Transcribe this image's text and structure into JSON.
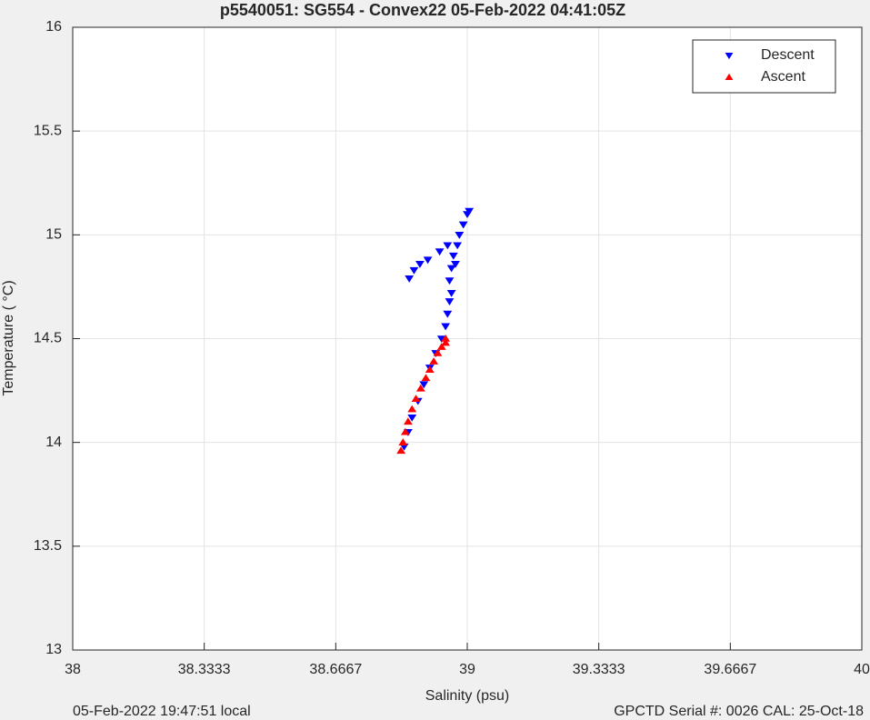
{
  "chart_data": {
    "type": "scatter",
    "title": "p5540051: SG554 - Convex22 05-Feb-2022 04:41:05Z",
    "x_label": "Salinity (psu)",
    "y_label": "Temperature ( °C)",
    "footer_left": "05-Feb-2022 19:47:51 local",
    "footer_right": "GPCTD Serial #: 0026 CAL: 25-Oct-18",
    "xlim": [
      38,
      40
    ],
    "xticks": [
      38,
      38.3333,
      38.6667,
      39,
      39.3333,
      39.6667,
      40
    ],
    "ylim": [
      13,
      16
    ],
    "yticks": [
      13,
      13.5,
      14,
      14.5,
      15,
      15.5,
      16
    ],
    "grid": true,
    "legend": "top-right",
    "series": [
      {
        "name": "Descent",
        "color": "#0000ff",
        "marker": "triangle-down",
        "x": [
          38.84,
          38.85,
          38.86,
          38.875,
          38.89,
          38.905,
          38.92,
          38.935,
          38.945,
          38.95,
          38.955,
          38.96,
          38.955,
          38.96,
          38.97,
          38.965,
          38.975,
          38.98,
          38.99,
          39.0,
          39.005,
          38.95,
          38.93,
          38.9,
          38.88,
          38.865,
          38.853
        ],
        "y": [
          13.98,
          14.05,
          14.12,
          14.2,
          14.28,
          14.36,
          14.43,
          14.5,
          14.56,
          14.62,
          14.68,
          14.72,
          14.78,
          14.84,
          14.86,
          14.9,
          14.95,
          15.0,
          15.05,
          15.1,
          15.115,
          14.95,
          14.92,
          14.88,
          14.86,
          14.83,
          14.79
        ]
      },
      {
        "name": "Ascent",
        "color": "#ff0000",
        "marker": "triangle-up",
        "x": [
          38.832,
          38.837,
          38.843,
          38.85,
          38.86,
          38.87,
          38.882,
          38.895,
          38.905,
          38.915,
          38.925,
          38.935,
          38.945,
          38.945
        ],
        "y": [
          13.96,
          14.0,
          14.05,
          14.1,
          14.16,
          14.21,
          14.26,
          14.31,
          14.35,
          14.39,
          14.43,
          14.46,
          14.48,
          14.5
        ]
      }
    ]
  }
}
